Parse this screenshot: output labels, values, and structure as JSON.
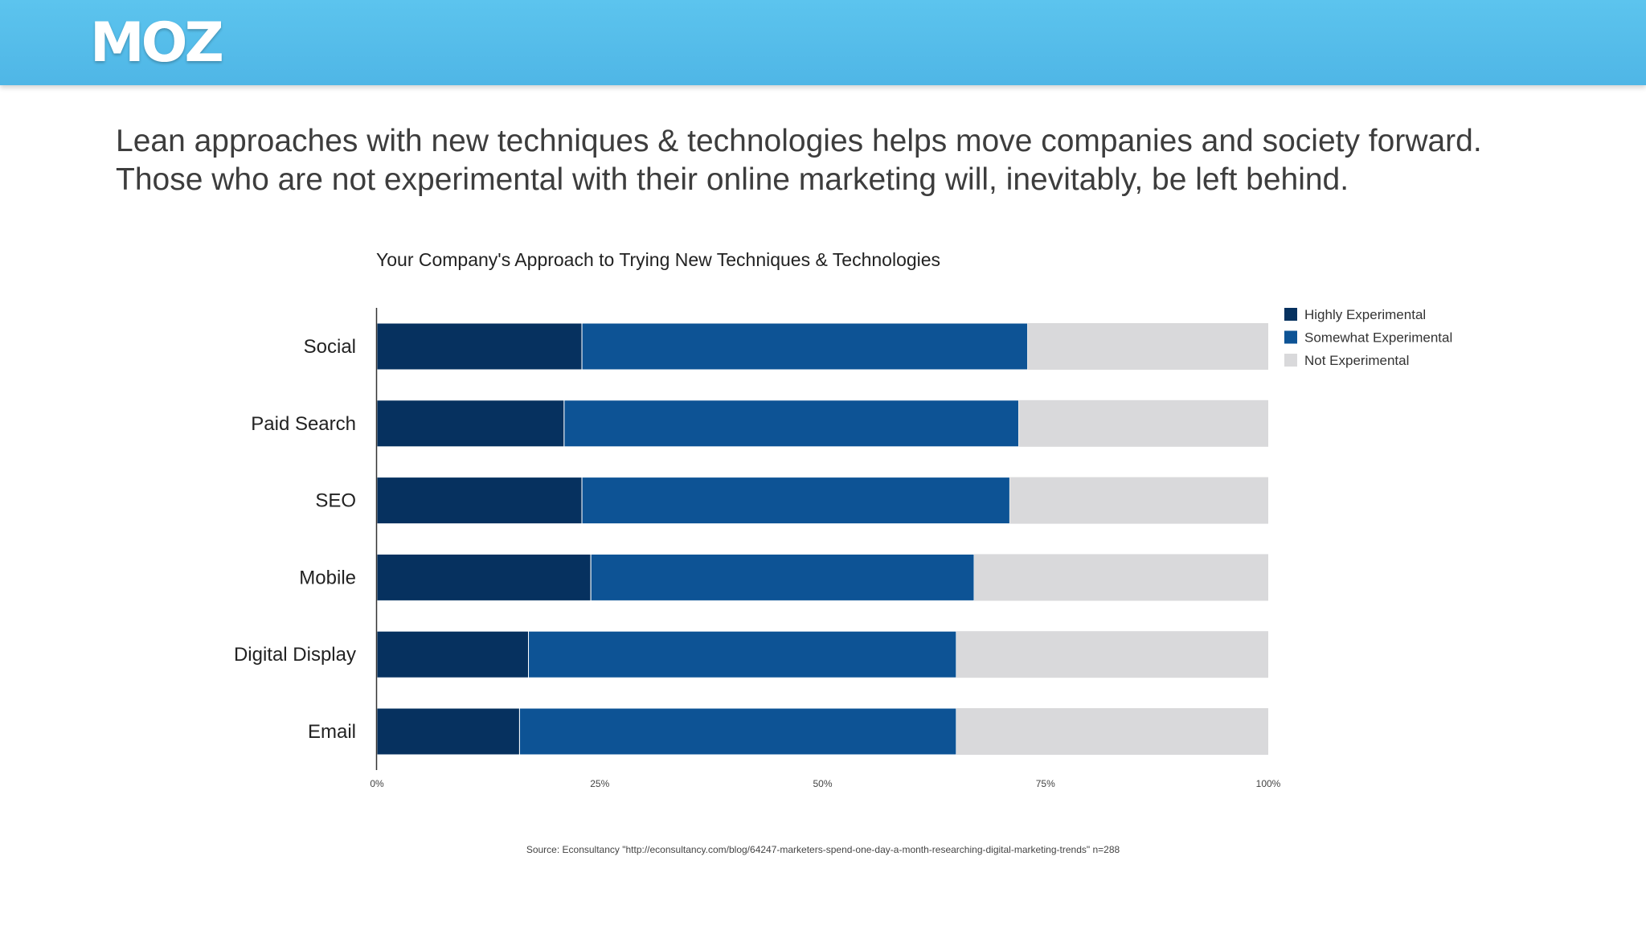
{
  "header": {
    "logo_text": "MOZ",
    "background_color": "#55bcea"
  },
  "headline": {
    "line1": "Lean approaches with new techniques & technologies helps move companies and society forward.",
    "line2": "Those who are not experimental with their online marketing will, inevitably, be left behind."
  },
  "chart_data": {
    "type": "bar",
    "orientation": "horizontal",
    "stacked": true,
    "title": "Your Company's Approach to Trying New Techniques & Technologies",
    "categories": [
      "Social",
      "Paid Search",
      "SEO",
      "Mobile",
      "Digital Display",
      "Email"
    ],
    "series": [
      {
        "name": "Highly Experimental",
        "color": "#06315f",
        "values": [
          23,
          21,
          23,
          24,
          17,
          16
        ]
      },
      {
        "name": "Somewhat Experimental",
        "color": "#0d5395",
        "values": [
          50,
          51,
          48,
          43,
          48,
          49
        ]
      },
      {
        "name": "Not Experimental",
        "color": "#d9d9db",
        "values": [
          27,
          28,
          29,
          33,
          35,
          35
        ]
      }
    ],
    "xlim": [
      0,
      100
    ],
    "x_ticks": [
      "0%",
      "25%",
      "50%",
      "75%",
      "100%"
    ],
    "legend_position": "top-right",
    "grid": false
  },
  "source": {
    "text": "Source: Econsultancy \"http://econsultancy.com/blog/64247-marketers-spend-one-day-a-month-researching-digital-marketing-trends\" n=288"
  }
}
